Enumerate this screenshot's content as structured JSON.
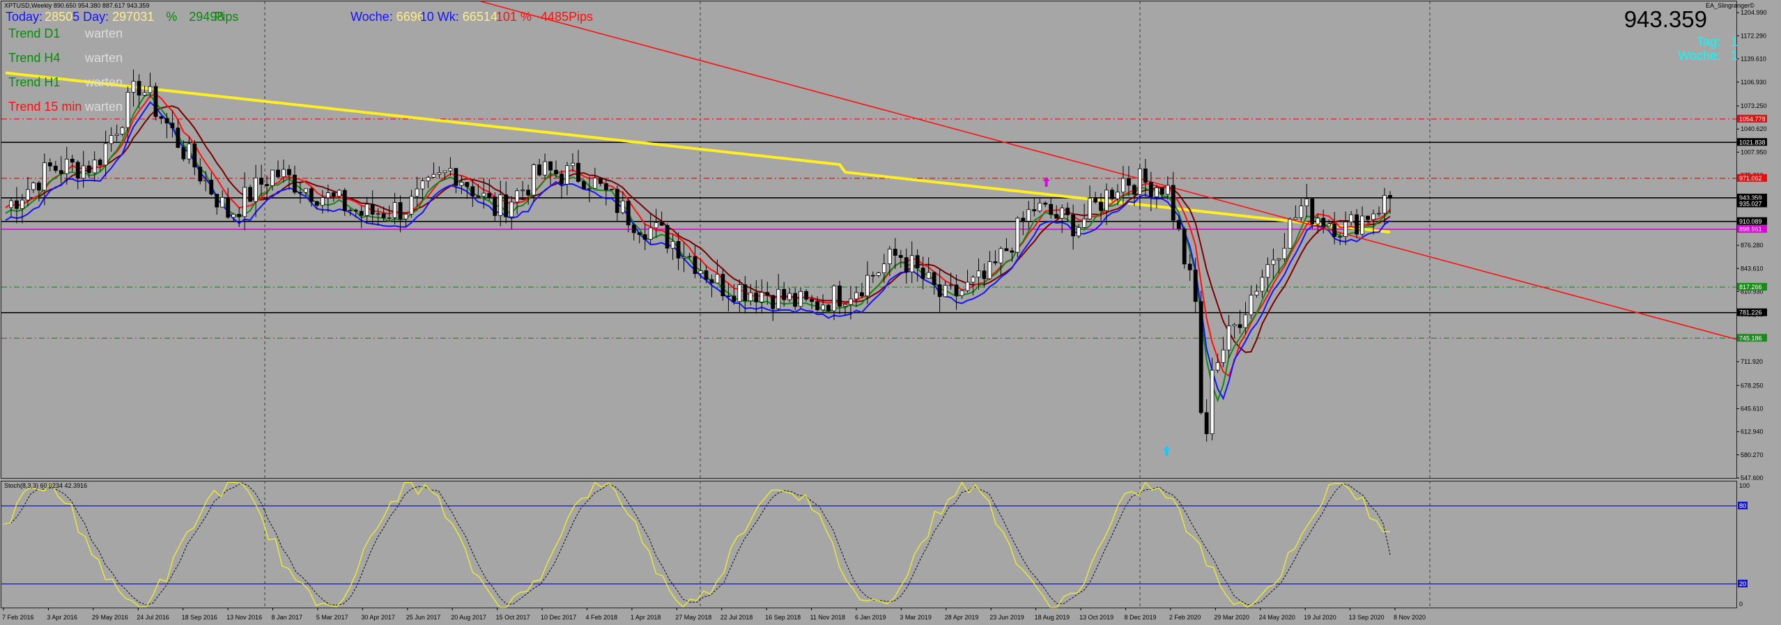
{
  "chart_header": {
    "symbol_line": "XPTUSD,Weekly  890.650 954.380 887.617 943.359",
    "ea_name": "EA_Slingranger©",
    "big_price": "943.359"
  },
  "overlay": {
    "today_label": "Today:",
    "today_pips": "2850",
    "day_label": "5 Day:",
    "day_pips": "2970",
    "day_pips_tail": "31",
    "day_pct_sign": "%",
    "day_pct_value": "29498",
    "day_pips_label": "Pips",
    "woche_label": "Woche:",
    "woche_pips": "6696",
    "wk_label": "10 Wk:",
    "wk_pips": "66514",
    "wk_pct": "101 %",
    "wk_total": "4485Pips",
    "tag_label": "Tag:",
    "tag_value": "1",
    "woche_label_right": "Woche:",
    "woche_value_right": "1"
  },
  "trends": [
    {
      "label": "Trend D1",
      "state": "warten",
      "color": "#0a8a0a"
    },
    {
      "label": "Trend H4",
      "state": "warten",
      "color": "#0a8a0a"
    },
    {
      "label": "Trend H1",
      "state": "warten",
      "color": "#0a8a0a"
    },
    {
      "label": "Trend 15 min",
      "state": "warten",
      "color": "#ff1010"
    }
  ],
  "main_price_axis": {
    "ticks": [
      "1204.990",
      "1172.290",
      "1139.610",
      "1106.930",
      "1073.250",
      "1040.620",
      "1007.950",
      "975.260",
      "942.590",
      "909.910",
      "876.280",
      "843.610",
      "810.930",
      "778.240",
      "745.560",
      "711.920",
      "678.250",
      "645.610",
      "612.940",
      "580.270",
      "547.600"
    ],
    "range": [
      547.6,
      1218
    ]
  },
  "levels": [
    {
      "value": 1054.778,
      "label": "1054.778",
      "color": "#e01010",
      "style": "dashdot",
      "box": "#e01010",
      "text": "#ffffff"
    },
    {
      "value": 1021.838,
      "label": "1021.838",
      "color": "#000000",
      "style": "solid",
      "box": "#000000",
      "text": "#ffffff"
    },
    {
      "value": 971.062,
      "label": "971.062",
      "color": "#e01010",
      "style": "dashdot",
      "box": "#e01010",
      "text": "#ffffff"
    },
    {
      "value": 943.359,
      "label": "943.359",
      "color": "#000000",
      "style": "solid",
      "box": "#000000",
      "text": "#ffffff"
    },
    {
      "value": 935.027,
      "label": "935.027",
      "color": "#000000",
      "style": "none",
      "box": "#000000",
      "text": "#ffffff"
    },
    {
      "value": 910.089,
      "label": "910.089",
      "color": "#000000",
      "style": "solid",
      "box": "#000000",
      "text": "#ffffff"
    },
    {
      "value": 898.961,
      "label": "898.961",
      "color": "#e000e0",
      "style": "solid",
      "box": "#e000e0",
      "text": "#ffffff"
    },
    {
      "value": 817.266,
      "label": "817.266",
      "color": "#1a8a1a",
      "style": "dashdot",
      "box": "#1a8a1a",
      "text": "#ffffff"
    },
    {
      "value": 781.226,
      "label": "781.226",
      "color": "#000000",
      "style": "solid",
      "box": "#000000",
      "text": "#ffffff"
    },
    {
      "value": 745.186,
      "label": "745.186",
      "color": "#1a8a1a",
      "style": "dashdot",
      "box": "#1a8a1a",
      "text": "#ffffff"
    }
  ],
  "date_axis": [
    "7 Feb 2016",
    "3 Apr 2016",
    "29 May 2016",
    "24 Jul 2016",
    "18 Sep 2016",
    "13 Nov 2016",
    "8 Jan 2017",
    "5 Mar 2017",
    "30 Apr 2017",
    "25 Jun 2017",
    "20 Aug 2017",
    "15 Oct 2017",
    "10 Dec 2017",
    "4 Feb 2018",
    "1 Apr 2018",
    "27 May 2018",
    "22 Jul 2018",
    "16 Sep 2018",
    "11 Nov 2018",
    "6 Jan 2019",
    "3 Mar 2019",
    "28 Apr 2019",
    "23 Jun 2019",
    "18 Aug 2019",
    "13 Oct 2019",
    "8 Dec 2019",
    "2 Feb 2020",
    "29 Mar 2020",
    "24 May 2020",
    "19 Jul 2020",
    "13 Sep 2020",
    "8 Nov 2020"
  ],
  "stochastic": {
    "title": "Stoch(8,3,3) 60.0234 42.3916",
    "levels": [
      "80",
      "20"
    ],
    "axis_top": "100",
    "axis_bottom": "0"
  },
  "price_series": [
    {
      "week": "7 Feb 2016",
      "close": 930
    },
    {
      "week": "3 Apr 2016",
      "close": 985
    },
    {
      "week": "29 May 2016",
      "close": 990
    },
    {
      "week": "24 Jul 2016",
      "close": 1105
    },
    {
      "week": "18 Sep 2016",
      "close": 1010
    },
    {
      "week": "13 Nov 2016",
      "close": 920
    },
    {
      "week": "8 Jan 2017",
      "close": 980
    },
    {
      "week": "5 Mar 2017",
      "close": 950
    },
    {
      "week": "30 Apr 2017",
      "close": 920
    },
    {
      "week": "25 Jun 2017",
      "close": 930
    },
    {
      "week": "20 Aug 2017",
      "close": 985
    },
    {
      "week": "15 Oct 2017",
      "close": 925
    },
    {
      "week": "10 Dec 2017",
      "close": 980
    },
    {
      "week": "4 Feb 2018",
      "close": 975
    },
    {
      "week": "1 Apr 2018",
      "close": 915
    },
    {
      "week": "27 May 2018",
      "close": 880
    },
    {
      "week": "22 Jul 2018",
      "close": 820
    },
    {
      "week": "16 Sep 2018",
      "close": 810
    },
    {
      "week": "11 Nov 2018",
      "close": 790
    },
    {
      "week": "6 Jan 2019",
      "close": 815
    },
    {
      "week": "3 Mar 2019",
      "close": 865
    },
    {
      "week": "28 Apr 2019",
      "close": 800
    },
    {
      "week": "23 Jun 2019",
      "close": 830
    },
    {
      "week": "18 Aug 2019",
      "close": 930
    },
    {
      "week": "13 Oct 2019",
      "close": 905
    },
    {
      "week": "8 Dec 2019",
      "close": 970
    },
    {
      "week": "2 Feb 2020",
      "close": 960
    },
    {
      "week": "29 Mar 2020",
      "close": 700
    },
    {
      "week": "24 May 2020",
      "close": 820
    },
    {
      "week": "19 Jul 2020",
      "close": 930
    },
    {
      "week": "13 Sep 2020",
      "close": 900
    },
    {
      "week": "8 Nov 2020",
      "close": 943
    }
  ],
  "colors": {
    "background": "#a6a6a6",
    "grid": "#555555",
    "ma_slow": "#ffee22",
    "ma_red": "#ff1010",
    "ma_darkred": "#7a0000",
    "ma_green": "#128a12",
    "ma_blue": "#1414ff",
    "trendline": "#ff1010",
    "stoch_main": "#e8e832",
    "stoch_signal": "#222222"
  },
  "markers": [
    {
      "type": "arrow-up",
      "week": "18 Aug 2019",
      "color": "#e000e0"
    },
    {
      "type": "arrow-up",
      "week": "29 Mar 2020",
      "color": "#00d0ff"
    }
  ]
}
